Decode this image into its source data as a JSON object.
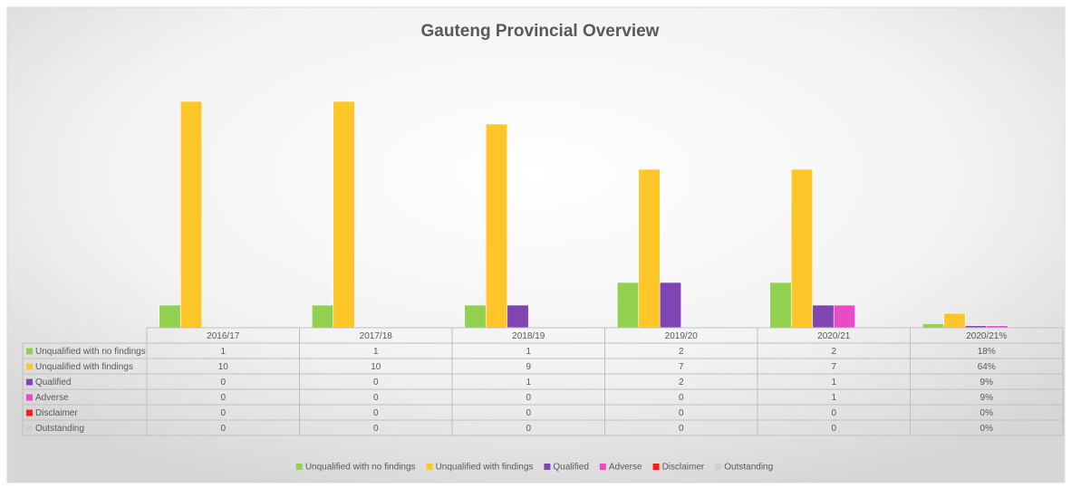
{
  "chart_data": {
    "type": "bar",
    "title": "Gauteng Provincial Overview",
    "categories": [
      "2016/17",
      "2017/18",
      "2018/19",
      "2019/20",
      "2020/21",
      "2020/21%"
    ],
    "series": [
      {
        "name": "Unqualified with no findings",
        "color": "#92d050",
        "values": [
          1,
          1,
          1,
          2,
          2,
          0.18
        ],
        "value_labels": [
          "1",
          "1",
          "1",
          "2",
          "2",
          "18%"
        ]
      },
      {
        "name": "Unqualified with findings",
        "color": "#ffc62a",
        "values": [
          10,
          10,
          9,
          7,
          7,
          0.64
        ],
        "value_labels": [
          "10",
          "10",
          "9",
          "7",
          "7",
          "64%"
        ]
      },
      {
        "name": "Qualified",
        "color": "#7f46b2",
        "values": [
          0,
          0,
          1,
          2,
          1,
          0.09
        ],
        "value_labels": [
          "0",
          "0",
          "1",
          "2",
          "1",
          "9%"
        ]
      },
      {
        "name": "Adverse",
        "color": "#e84cc4",
        "values": [
          0,
          0,
          0,
          0,
          1,
          0.09
        ],
        "value_labels": [
          "0",
          "0",
          "0",
          "0",
          "1",
          "9%"
        ]
      },
      {
        "name": "Disclaimer",
        "color": "#ff1a1a",
        "values": [
          0,
          0,
          0,
          0,
          0,
          0
        ],
        "value_labels": [
          "0",
          "0",
          "0",
          "0",
          "0",
          "0%"
        ]
      },
      {
        "name": "Outstanding",
        "color": "#cfcfcf",
        "values": [
          0,
          0,
          0,
          0,
          0,
          0
        ],
        "value_labels": [
          "0",
          "0",
          "0",
          "0",
          "0",
          "0%"
        ]
      }
    ],
    "ylim": [
      0,
      12
    ],
    "legend": "bottom"
  }
}
